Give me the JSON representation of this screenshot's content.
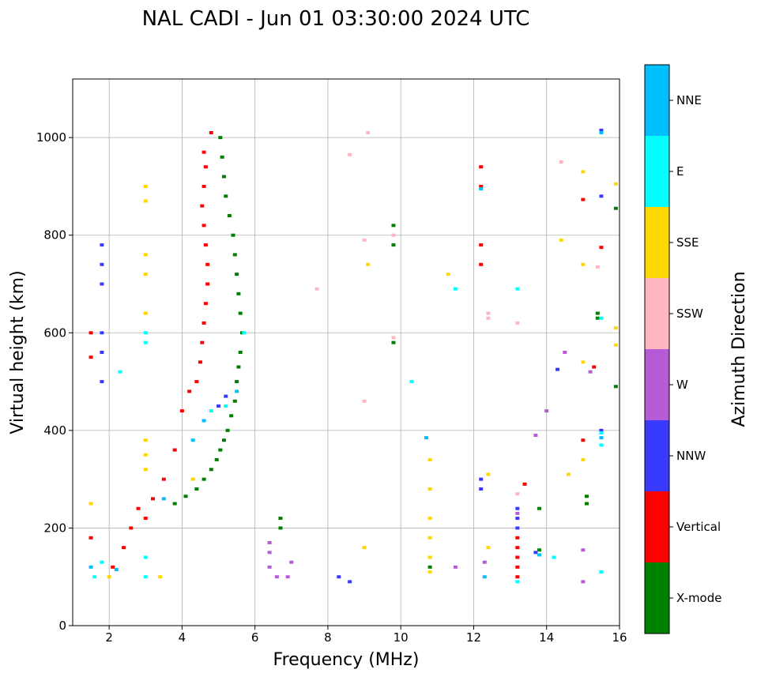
{
  "chart_data": {
    "type": "scatter",
    "title": "NAL CADI - Jun 01 03:30:00 2024 UTC",
    "xlabel": "Frequency (MHz)",
    "ylabel": "Virtual height (km)",
    "xlim": [
      1,
      16
    ],
    "ylim": [
      0,
      1120
    ],
    "xticks": [
      2,
      4,
      6,
      8,
      10,
      12,
      14,
      16
    ],
    "yticks": [
      0,
      200,
      400,
      600,
      800,
      1000
    ],
    "grid": true,
    "colorbar": {
      "label": "Azimuth Direction",
      "categories": [
        {
          "name": "X-mode",
          "color": "#008000"
        },
        {
          "name": "Vertical",
          "color": "#ff0000"
        },
        {
          "name": "NNW",
          "color": "#3a3aff"
        },
        {
          "name": "W",
          "color": "#b65ad6"
        },
        {
          "name": "SSW",
          "color": "#ffb6c1"
        },
        {
          "name": "SSE",
          "color": "#ffd700"
        },
        {
          "name": "E",
          "color": "#00ffff"
        },
        {
          "name": "NNE",
          "color": "#00bfff"
        }
      ]
    },
    "series": [
      {
        "name": "X-mode",
        "points": [
          [
            3.8,
            250
          ],
          [
            4.1,
            265
          ],
          [
            4.4,
            280
          ],
          [
            4.6,
            300
          ],
          [
            4.8,
            320
          ],
          [
            4.95,
            340
          ],
          [
            5.05,
            360
          ],
          [
            5.15,
            380
          ],
          [
            5.25,
            400
          ],
          [
            5.35,
            430
          ],
          [
            5.45,
            460
          ],
          [
            5.5,
            500
          ],
          [
            5.55,
            530
          ],
          [
            5.6,
            560
          ],
          [
            5.65,
            600
          ],
          [
            5.6,
            640
          ],
          [
            5.55,
            680
          ],
          [
            5.5,
            720
          ],
          [
            5.45,
            760
          ],
          [
            5.4,
            800
          ],
          [
            5.3,
            840
          ],
          [
            5.2,
            880
          ],
          [
            5.15,
            920
          ],
          [
            5.1,
            960
          ],
          [
            5.05,
            1000
          ],
          [
            6.7,
            200
          ],
          [
            6.7,
            220
          ],
          [
            9.8,
            580
          ],
          [
            9.8,
            780
          ],
          [
            9.8,
            820
          ],
          [
            10.8,
            120
          ],
          [
            13.8,
            240
          ],
          [
            13.8,
            155
          ],
          [
            15.1,
            250
          ],
          [
            15.1,
            265
          ],
          [
            15.4,
            630
          ],
          [
            15.4,
            640
          ],
          [
            15.9,
            490
          ],
          [
            15.9,
            855
          ]
        ]
      },
      {
        "name": "Vertical",
        "points": [
          [
            1.5,
            600
          ],
          [
            1.5,
            550
          ],
          [
            1.5,
            180
          ],
          [
            2.1,
            120
          ],
          [
            2.4,
            160
          ],
          [
            2.6,
            200
          ],
          [
            2.8,
            240
          ],
          [
            3.0,
            220
          ],
          [
            3.2,
            260
          ],
          [
            3.5,
            300
          ],
          [
            3.8,
            360
          ],
          [
            4.0,
            440
          ],
          [
            4.2,
            480
          ],
          [
            4.4,
            500
          ],
          [
            4.5,
            540
          ],
          [
            4.55,
            580
          ],
          [
            4.6,
            620
          ],
          [
            4.65,
            660
          ],
          [
            4.7,
            700
          ],
          [
            4.7,
            740
          ],
          [
            4.65,
            780
          ],
          [
            4.6,
            820
          ],
          [
            4.55,
            860
          ],
          [
            4.6,
            900
          ],
          [
            4.65,
            940
          ],
          [
            4.6,
            970
          ],
          [
            4.8,
            1010
          ],
          [
            12.2,
            740
          ],
          [
            12.2,
            780
          ],
          [
            12.2,
            900
          ],
          [
            12.2,
            940
          ],
          [
            13.2,
            100
          ],
          [
            13.2,
            120
          ],
          [
            13.2,
            140
          ],
          [
            13.2,
            160
          ],
          [
            13.2,
            180
          ],
          [
            15.0,
            380
          ],
          [
            15.5,
            775
          ],
          [
            15.0,
            873
          ],
          [
            15.3,
            530
          ],
          [
            13.4,
            290
          ]
        ]
      },
      {
        "name": "NNW",
        "points": [
          [
            1.8,
            500
          ],
          [
            1.8,
            560
          ],
          [
            1.8,
            600
          ],
          [
            1.8,
            700
          ],
          [
            1.8,
            740
          ],
          [
            1.8,
            780
          ],
          [
            12.2,
            280
          ],
          [
            12.2,
            300
          ],
          [
            13.2,
            200
          ],
          [
            13.2,
            220
          ],
          [
            13.2,
            240
          ],
          [
            13.7,
            150
          ],
          [
            14.3,
            525
          ],
          [
            15.5,
            400
          ],
          [
            15.5,
            880
          ],
          [
            15.5,
            1015
          ],
          [
            5.0,
            450
          ],
          [
            5.2,
            470
          ],
          [
            8.3,
            100
          ],
          [
            8.6,
            90
          ]
        ]
      },
      {
        "name": "W",
        "points": [
          [
            6.4,
            120
          ],
          [
            6.4,
            150
          ],
          [
            6.4,
            170
          ],
          [
            6.6,
            100
          ],
          [
            6.9,
            100
          ],
          [
            7.0,
            130
          ],
          [
            12.3,
            130
          ],
          [
            13.2,
            230
          ],
          [
            13.7,
            390
          ],
          [
            14.0,
            440
          ],
          [
            14.5,
            560
          ],
          [
            15.0,
            155
          ],
          [
            15.0,
            90
          ],
          [
            15.2,
            520
          ],
          [
            11.5,
            120
          ]
        ]
      },
      {
        "name": "SSW",
        "points": [
          [
            9.0,
            460
          ],
          [
            9.0,
            790
          ],
          [
            9.1,
            1010
          ],
          [
            8.6,
            965
          ],
          [
            9.8,
            590
          ],
          [
            9.8,
            800
          ],
          [
            12.4,
            640
          ],
          [
            12.4,
            630
          ],
          [
            13.2,
            270
          ],
          [
            13.2,
            620
          ],
          [
            14.4,
            950
          ],
          [
            15.4,
            735
          ],
          [
            7.7,
            690
          ]
        ]
      },
      {
        "name": "SSE",
        "points": [
          [
            1.5,
            250
          ],
          [
            2.0,
            100
          ],
          [
            3.0,
            900
          ],
          [
            3.0,
            870
          ],
          [
            3.0,
            760
          ],
          [
            3.0,
            720
          ],
          [
            3.0,
            640
          ],
          [
            3.0,
            380
          ],
          [
            3.0,
            350
          ],
          [
            3.0,
            320
          ],
          [
            3.4,
            100
          ],
          [
            4.3,
            300
          ],
          [
            9.0,
            160
          ],
          [
            9.1,
            740
          ],
          [
            10.8,
            340
          ],
          [
            10.8,
            280
          ],
          [
            10.8,
            220
          ],
          [
            10.8,
            180
          ],
          [
            10.8,
            140
          ],
          [
            10.8,
            110
          ],
          [
            11.3,
            720
          ],
          [
            12.4,
            310
          ],
          [
            12.4,
            160
          ],
          [
            14.4,
            790
          ],
          [
            14.6,
            310
          ],
          [
            15.0,
            340
          ],
          [
            15.0,
            740
          ],
          [
            15.0,
            540
          ],
          [
            15.0,
            930
          ],
          [
            15.9,
            610
          ],
          [
            15.9,
            575
          ],
          [
            15.9,
            905
          ]
        ]
      },
      {
        "name": "E",
        "points": [
          [
            1.6,
            100
          ],
          [
            1.8,
            130
          ],
          [
            2.3,
            520
          ],
          [
            3.0,
            140
          ],
          [
            3.0,
            100
          ],
          [
            3.0,
            600
          ],
          [
            3.0,
            580
          ],
          [
            4.8,
            440
          ],
          [
            5.2,
            450
          ],
          [
            5.7,
            600
          ],
          [
            10.3,
            500
          ],
          [
            11.5,
            690
          ],
          [
            13.2,
            690
          ],
          [
            13.2,
            90
          ],
          [
            14.2,
            140
          ],
          [
            15.5,
            110
          ],
          [
            15.5,
            370
          ],
          [
            15.5,
            630
          ],
          [
            15.5,
            395
          ]
        ]
      },
      {
        "name": "NNE",
        "points": [
          [
            1.5,
            120
          ],
          [
            2.2,
            115
          ],
          [
            3.5,
            260
          ],
          [
            4.3,
            380
          ],
          [
            4.6,
            420
          ],
          [
            5.5,
            480
          ],
          [
            10.7,
            385
          ],
          [
            12.2,
            895
          ],
          [
            13.8,
            145
          ],
          [
            15.5,
            385
          ],
          [
            15.5,
            1010
          ],
          [
            12.3,
            100
          ]
        ]
      }
    ]
  }
}
